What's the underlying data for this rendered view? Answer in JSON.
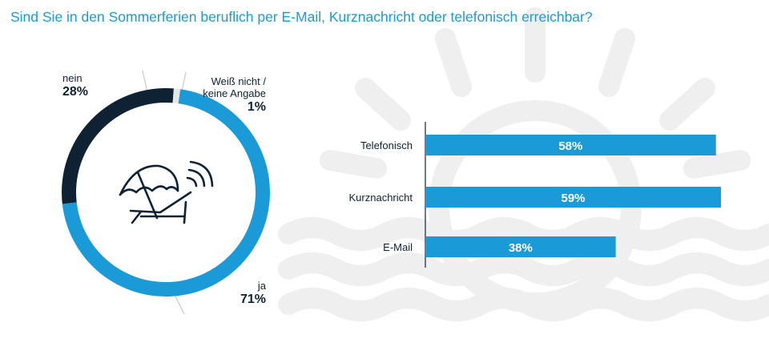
{
  "title": "Sind Sie in den Sommerferien beruflich per E-Mail, Kurznachricht oder telefonisch erreichbar?",
  "colors": {
    "accent": "#1a9bd7",
    "dark": "#0f2233",
    "faint": "#e6e6e6",
    "bg_art": "#efefef"
  },
  "chart_data": [
    {
      "type": "pie",
      "variant": "donut",
      "slices": [
        {
          "label": "ja",
          "value": 71,
          "display": "71%",
          "color": "#1a9bd7"
        },
        {
          "label": "nein",
          "value": 28,
          "display": "28%",
          "color": "#0f2233"
        },
        {
          "label_lines": [
            "Weiß nicht /",
            "keine Angabe"
          ],
          "value": 1,
          "display": "1%",
          "color": "#e6e6e6"
        }
      ],
      "center_icon": "beach-chair-umbrella-wifi-icon"
    },
    {
      "type": "bar",
      "orientation": "horizontal",
      "categories": [
        "Telefonisch",
        "Kurznachricht",
        "E-Mail"
      ],
      "values": [
        58,
        59,
        38
      ],
      "value_labels": [
        "58%",
        "59%",
        "38%"
      ],
      "color": "#1a9bd7",
      "xlim": [
        0,
        59
      ]
    }
  ]
}
